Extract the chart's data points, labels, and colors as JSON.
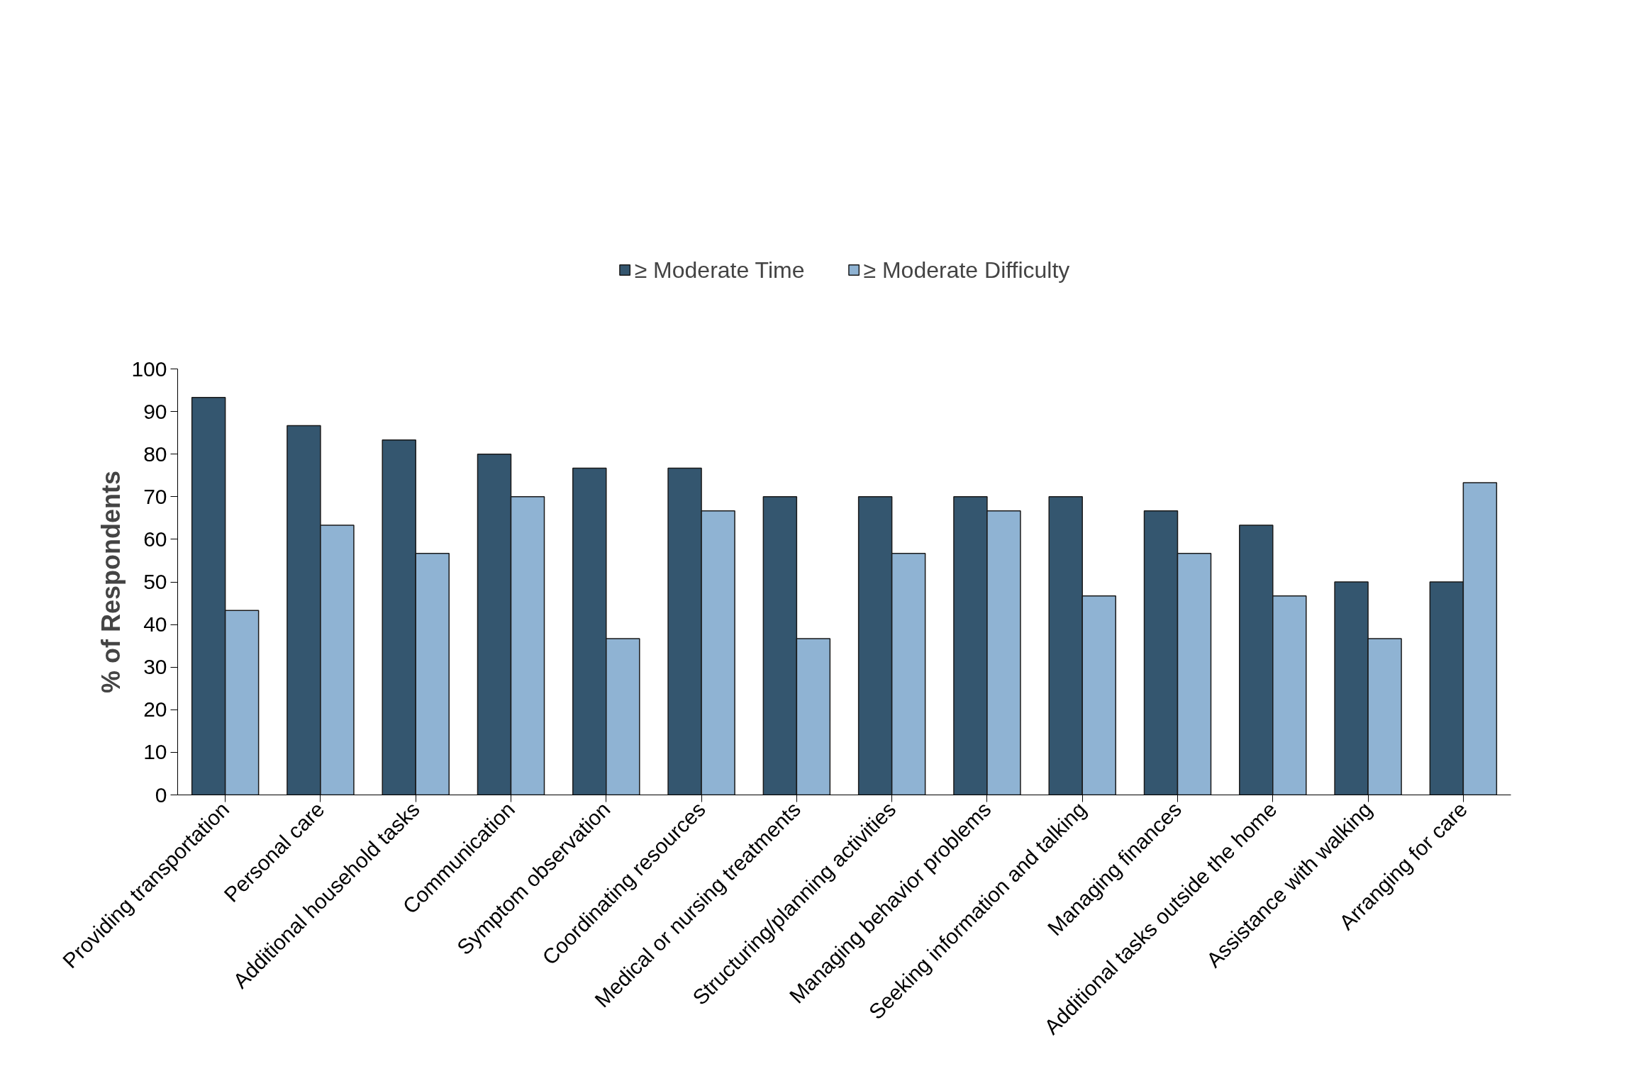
{
  "chart_data": {
    "type": "bar",
    "ylabel": "% of Respondents",
    "categories": [
      "Providing transportation",
      "Personal care",
      "Additional household tasks",
      "Communication",
      "Symptom observation",
      "Coordinating resources",
      "Medical or nursing treatments",
      "Structuring/planning activities",
      "Managing behavior problems",
      "Seeking information and talking",
      "Managing finances",
      "Additional tasks outside the home",
      "Assistance with walking",
      "Arranging for care"
    ],
    "series": [
      {
        "name": "≥ Moderate Time",
        "color": "#34566f",
        "values": [
          93.3,
          86.7,
          83.3,
          80,
          76.7,
          76.7,
          70,
          70,
          70,
          70,
          66.7,
          63.3,
          50,
          50
        ]
      },
      {
        "name": "≥ Moderate Difficulty",
        "color": "#8fb3d3",
        "values": [
          43.3,
          63.3,
          56.7,
          70,
          36.7,
          66.7,
          36.7,
          56.7,
          66.7,
          46.7,
          56.7,
          46.7,
          36.7,
          73.3
        ]
      }
    ],
    "ylim": [
      0,
      100
    ],
    "yticks": [
      0,
      10,
      20,
      30,
      40,
      50,
      60,
      70,
      80,
      90,
      100
    ],
    "grid": false,
    "legend": "top"
  }
}
